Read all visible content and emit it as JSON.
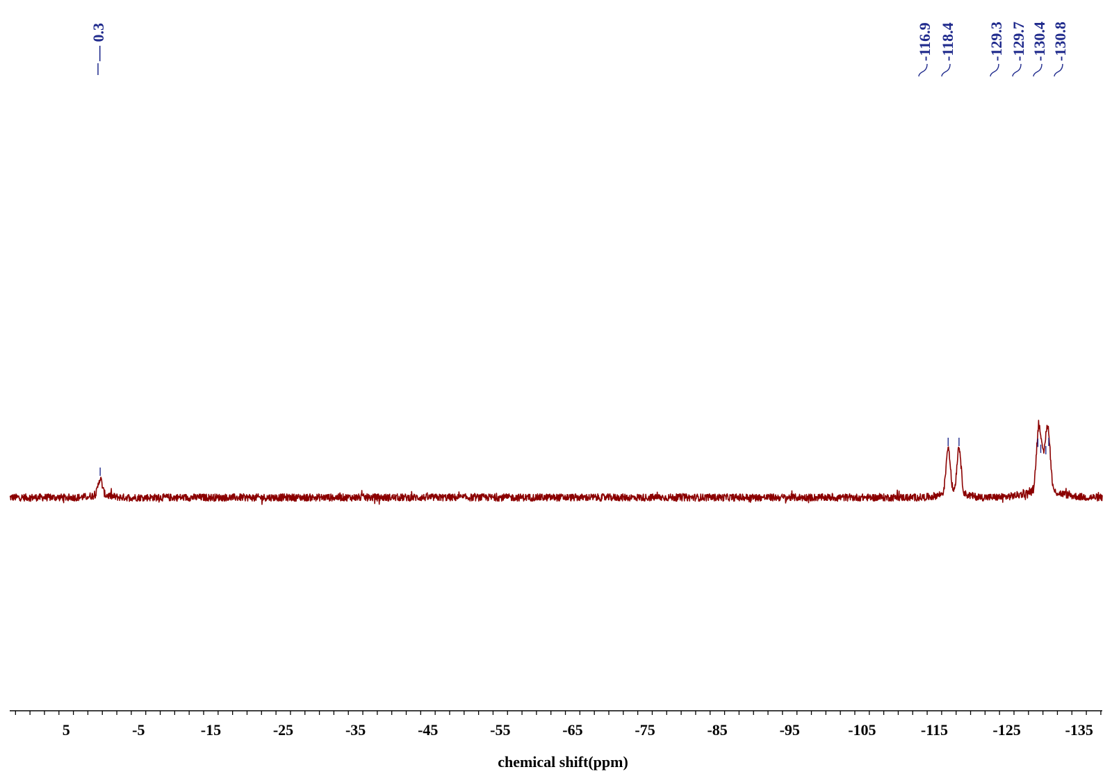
{
  "chart_data": {
    "type": "line",
    "title": "",
    "xlabel": "chemical shift(ppm)",
    "ylabel": "",
    "xlim": [
      12.8,
      -138.2
    ],
    "x_reversed": true,
    "major_ticks": [
      5,
      -5,
      -15,
      -25,
      -35,
      -45,
      -55,
      -65,
      -75,
      -85,
      -95,
      -105,
      -115,
      -125,
      -135
    ],
    "tick_labels": [
      "5",
      "-5",
      "-15",
      "-25",
      "-35",
      "-45",
      "-55",
      "-65",
      "-75",
      "-85",
      "-95",
      "-105",
      "-115",
      "-125",
      "-135"
    ],
    "minor_tick_step": 2,
    "peak_labels": [
      "0.3",
      "-116.9",
      "-118.4",
      "-129.3",
      "-129.7",
      "-130.4",
      "-130.8"
    ],
    "peaks": [
      {
        "shift": 0.3,
        "height": 0.35
      },
      {
        "shift": -116.9,
        "height": 1.0
      },
      {
        "shift": -118.4,
        "height": 1.0
      },
      {
        "shift": -129.3,
        "height": 0.98
      },
      {
        "shift": -129.7,
        "height": 0.85
      },
      {
        "shift": -130.4,
        "height": 0.82
      },
      {
        "shift": -130.8,
        "height": 1.0
      }
    ],
    "grid": false,
    "legend": "none",
    "colors": {
      "spectrum": "#8b0000",
      "peak_label": "#1f2a8c",
      "axis": "#000000"
    }
  }
}
